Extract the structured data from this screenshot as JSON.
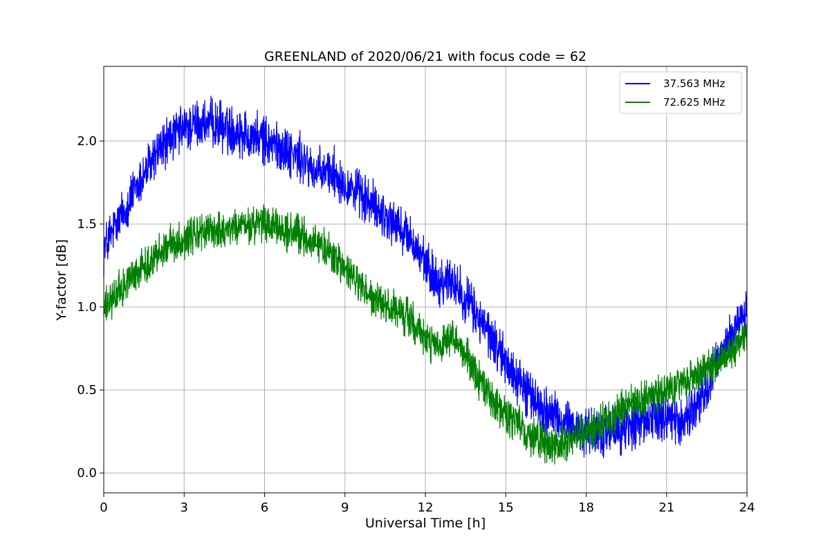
{
  "chart_data": {
    "type": "line",
    "title": "GREENLAND of 2020/06/21 with focus code = 62",
    "xlabel": "Universal Time [h]",
    "ylabel": "Y-factor [dB]",
    "xlim": [
      0,
      24
    ],
    "ylim": [
      -0.12,
      2.45
    ],
    "xticks": [
      0,
      3,
      6,
      9,
      12,
      15,
      18,
      21,
      24
    ],
    "xtick_labels": [
      "0",
      "3",
      "6",
      "9",
      "12",
      "15",
      "18",
      "21",
      "24"
    ],
    "yticks": [
      0.0,
      0.5,
      1.0,
      1.5,
      2.0
    ],
    "ytick_labels": [
      "0.0",
      "0.5",
      "1.0",
      "1.5",
      "2.0"
    ],
    "grid": true,
    "legend_position": "top-right",
    "series": [
      {
        "name": "37.563 MHz",
        "color": "#0000ff",
        "noise_amplitude": 0.22,
        "x": [
          0,
          0.5,
          1,
          1.5,
          2,
          2.5,
          3,
          3.5,
          4,
          4.5,
          5,
          5.5,
          6,
          6.5,
          7,
          7.5,
          8,
          8.5,
          9,
          9.5,
          10,
          10.5,
          11,
          11.5,
          12,
          12.5,
          13,
          13.5,
          14,
          14.5,
          15,
          15.5,
          16,
          16.5,
          17,
          17.5,
          18,
          18.5,
          19,
          19.5,
          20,
          20.5,
          21,
          21.5,
          22,
          22.5,
          23,
          23.5,
          24
        ],
        "values": [
          1.35,
          1.5,
          1.65,
          1.8,
          1.93,
          2.02,
          2.07,
          2.1,
          2.1,
          2.08,
          2.06,
          2.03,
          2.0,
          1.97,
          1.93,
          1.87,
          1.8,
          1.82,
          1.75,
          1.68,
          1.62,
          1.55,
          1.48,
          1.4,
          1.25,
          1.15,
          1.17,
          1.05,
          0.93,
          0.8,
          0.67,
          0.55,
          0.45,
          0.37,
          0.32,
          0.27,
          0.25,
          0.24,
          0.25,
          0.27,
          0.3,
          0.33,
          0.35,
          0.3,
          0.38,
          0.5,
          0.7,
          0.85,
          1.0
        ]
      },
      {
        "name": "72.625 MHz",
        "color": "#008000",
        "noise_amplitude": 0.17,
        "x": [
          0,
          0.5,
          1,
          1.5,
          2,
          2.5,
          3,
          3.5,
          4,
          4.5,
          5,
          5.5,
          6,
          6.5,
          7,
          7.5,
          8,
          8.5,
          9,
          9.5,
          10,
          10.5,
          11,
          11.5,
          12,
          12.5,
          13,
          13.5,
          14,
          14.5,
          15,
          15.5,
          16,
          16.5,
          17,
          17.5,
          18,
          18.5,
          19,
          19.5,
          20,
          20.5,
          21,
          21.5,
          22,
          22.5,
          23,
          23.5,
          24
        ],
        "values": [
          0.98,
          1.08,
          1.17,
          1.25,
          1.32,
          1.38,
          1.41,
          1.44,
          1.46,
          1.47,
          1.48,
          1.49,
          1.5,
          1.47,
          1.45,
          1.42,
          1.38,
          1.32,
          1.22,
          1.14,
          1.05,
          1.0,
          0.97,
          0.92,
          0.8,
          0.75,
          0.8,
          0.72,
          0.55,
          0.45,
          0.35,
          0.28,
          0.22,
          0.17,
          0.17,
          0.2,
          0.25,
          0.3,
          0.35,
          0.4,
          0.43,
          0.46,
          0.5,
          0.53,
          0.58,
          0.62,
          0.68,
          0.75,
          0.85
        ]
      }
    ]
  }
}
